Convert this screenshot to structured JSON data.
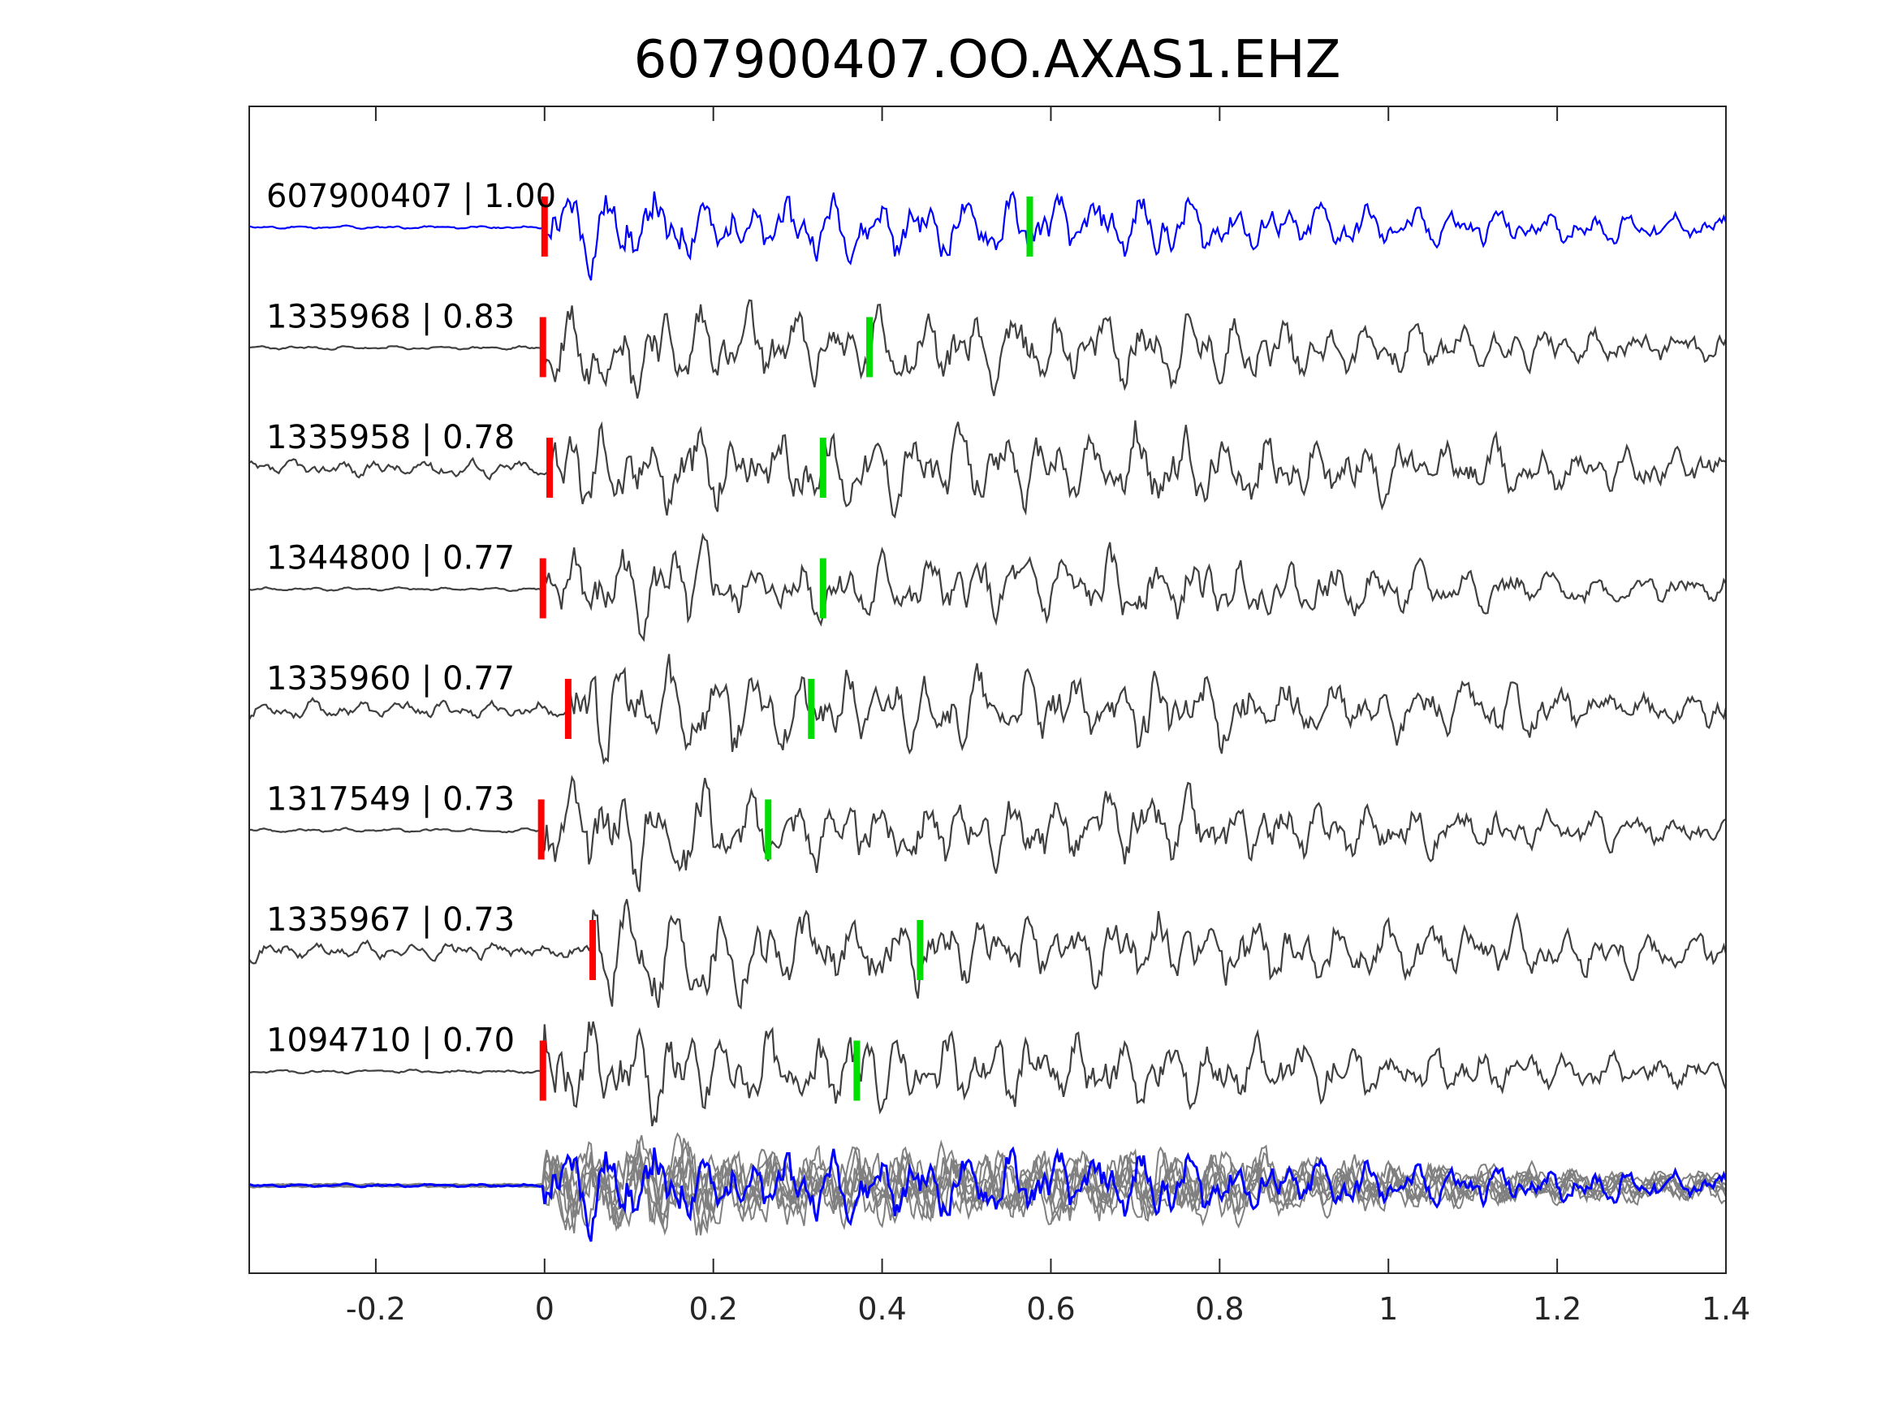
{
  "chart_data": {
    "type": "line",
    "title": "607900407.OO.AXAS1.EHZ",
    "xlabel": "",
    "ylabel": "",
    "xlim": [
      -0.35,
      1.4
    ],
    "x_ticks": [
      -0.2,
      0,
      0.2,
      0.4,
      0.6,
      0.8,
      1,
      1.2,
      1.4
    ],
    "x_tick_labels": [
      "-0.2",
      "0",
      "0.2",
      "0.4",
      "0.6",
      "0.8",
      "1",
      "1.2",
      "1.4"
    ],
    "grid": false,
    "colors": {
      "template": "#0000ff",
      "trace": "#404040",
      "stack": "#808080",
      "p_pick": "#ff0000",
      "s_pick": "#00dd00"
    },
    "traces": [
      {
        "label": "607900407 | 1.00",
        "id": "607900407",
        "cc": 1.0,
        "p_pick": 0.0,
        "s_pick": 0.575,
        "color": "#0000ff",
        "amp": 1.0,
        "seed": 11
      },
      {
        "label": "1335968 | 0.83",
        "id": "1335968",
        "cc": 0.83,
        "p_pick": -0.002,
        "s_pick": 0.385,
        "color": "#404040",
        "amp": 1.2,
        "seed": 23
      },
      {
        "label": "1335958 | 0.78",
        "id": "1335958",
        "cc": 0.78,
        "p_pick": 0.006,
        "s_pick": 0.33,
        "color": "#404040",
        "amp": 1.2,
        "seed": 37
      },
      {
        "label": "1344800 | 0.77",
        "id": "1344800",
        "cc": 0.77,
        "p_pick": -0.002,
        "s_pick": 0.33,
        "color": "#404040",
        "amp": 1.1,
        "seed": 41
      },
      {
        "label": "1335960 | 0.77",
        "id": "1335960",
        "cc": 0.77,
        "p_pick": 0.028,
        "s_pick": 0.316,
        "color": "#404040",
        "amp": 1.2,
        "seed": 53
      },
      {
        "label": "1317549 | 0.73",
        "id": "1317549",
        "cc": 0.73,
        "p_pick": -0.004,
        "s_pick": 0.265,
        "color": "#404040",
        "amp": 1.2,
        "seed": 67
      },
      {
        "label": "1335967 | 0.73",
        "id": "1335967",
        "cc": 0.73,
        "p_pick": 0.057,
        "s_pick": 0.445,
        "color": "#404040",
        "amp": 1.2,
        "seed": 71
      },
      {
        "label": "1094710 | 0.70",
        "id": "1094710",
        "cc": 0.7,
        "p_pick": -0.002,
        "s_pick": 0.37,
        "color": "#404040",
        "amp": 1.2,
        "seed": 83
      }
    ],
    "stack": {
      "overlay_count": 7,
      "template_color": "#0000ff",
      "overlay_color": "#808080"
    }
  }
}
